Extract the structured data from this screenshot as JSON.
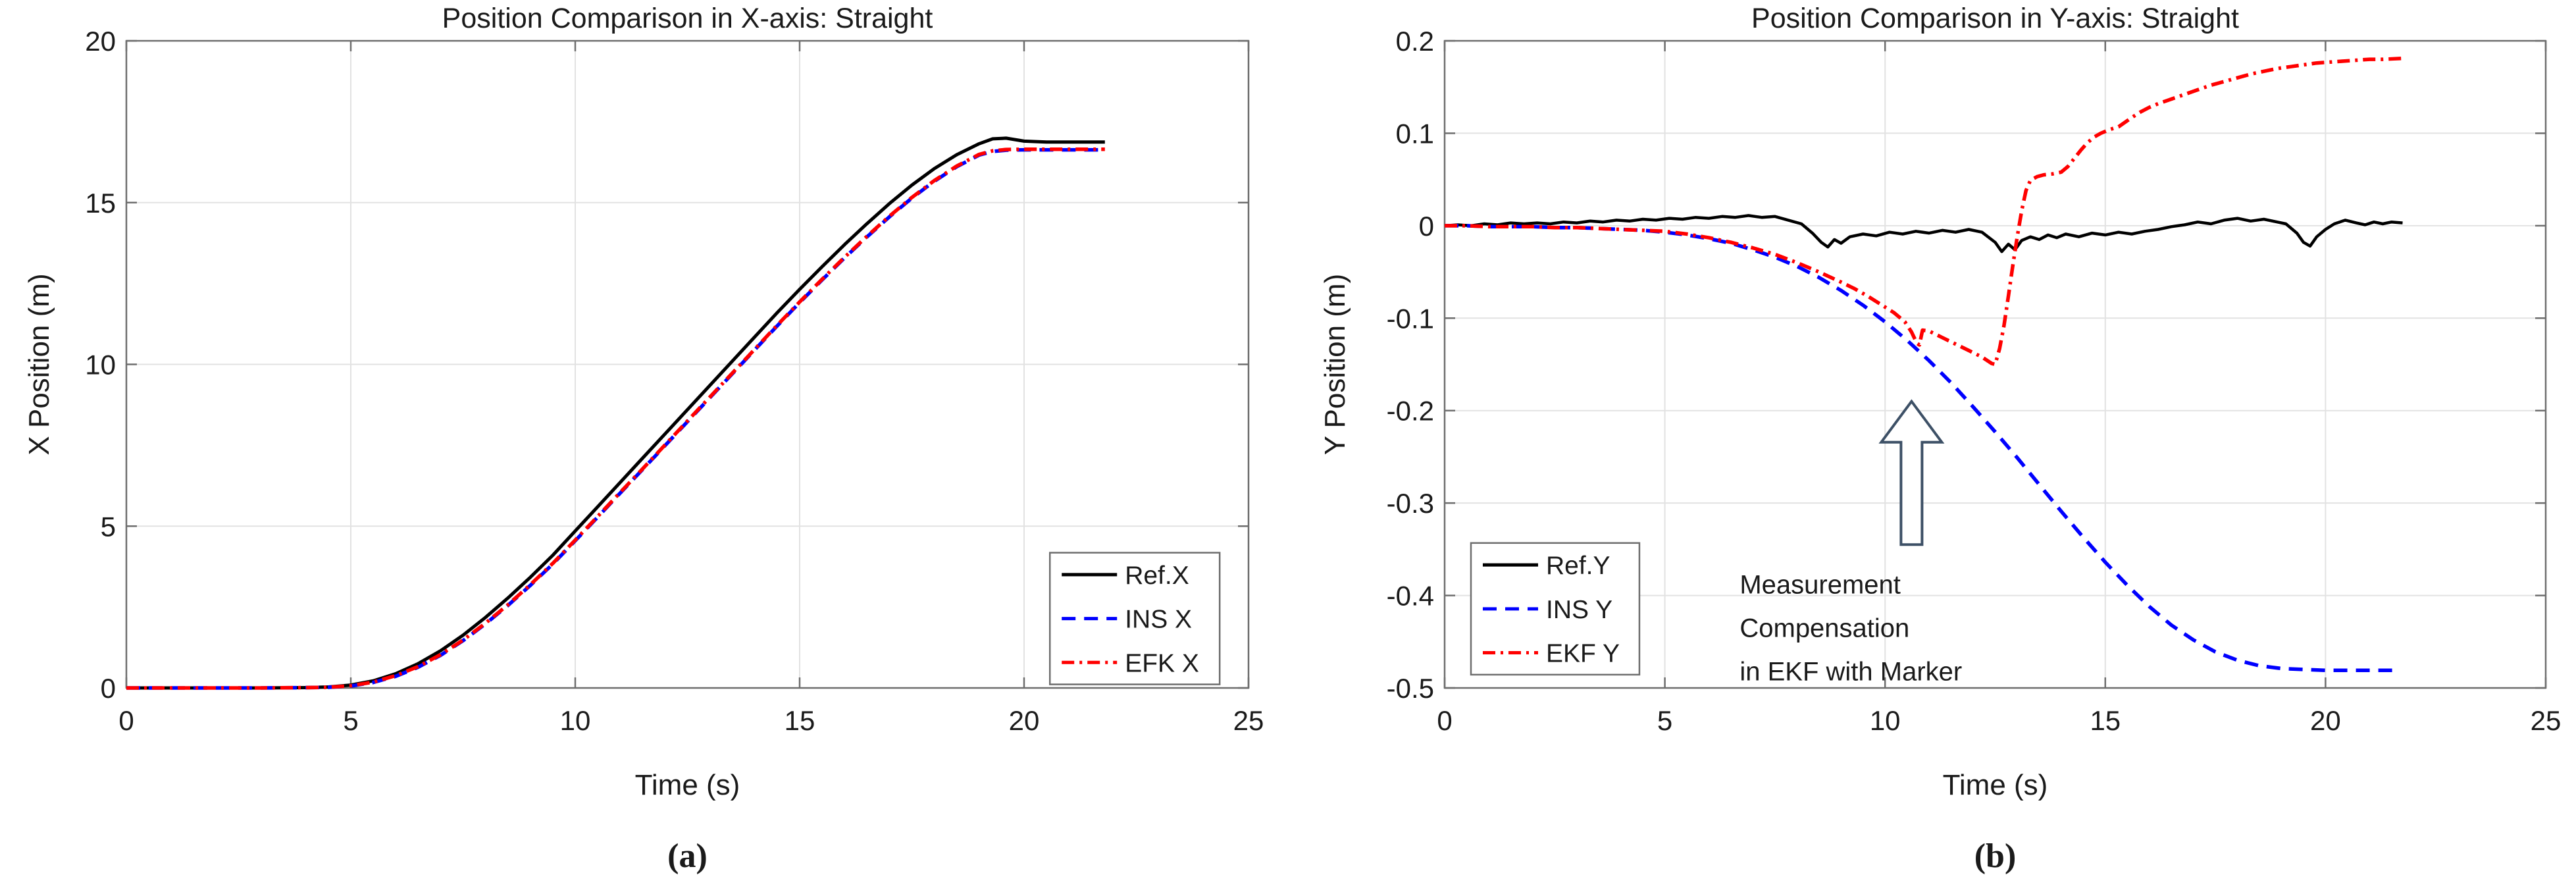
{
  "figure": {
    "background": "#ffffff",
    "description": "Two line charts comparing reference, INS and EKF position estimates for a straight trajectory"
  },
  "colors": {
    "ref": "#000000",
    "ins": "#0000ff",
    "ekf": "#ff0000",
    "grid": "#e2e2e2",
    "axis": "#6e6e6e",
    "text": "#1a1a1a",
    "arrow_outline": "#3d5066"
  },
  "chart_data": [
    {
      "type": "line",
      "title": "Position Comparison in X-axis: Straight",
      "xlabel": "Time (s)",
      "ylabel": "X Position (m)",
      "sublabel": "(a)",
      "xlim": [
        0,
        25
      ],
      "ylim": [
        0,
        20
      ],
      "xticks": [
        0,
        5,
        10,
        15,
        20,
        25
      ],
      "yticks": [
        0,
        5,
        10,
        15,
        20
      ],
      "xtick_labels": [
        "0",
        "5",
        "10",
        "15",
        "20",
        "25"
      ],
      "ytick_labels": [
        "0",
        "5",
        "10",
        "15",
        "20"
      ],
      "grid": true,
      "legend": {
        "pos": [
          0.823,
          0.791,
          0.1513,
          0.2035
        ],
        "entries": [
          {
            "label": "Ref.X",
            "color": "#000000",
            "dash": ""
          },
          {
            "label": "INS X",
            "color": "#0000ff",
            "dash": "21 13"
          },
          {
            "label": "EFK X",
            "color": "#ff0000",
            "dash": "19 8 4 8"
          }
        ]
      },
      "series": [
        {
          "name": "Ref.X",
          "color": "#000000",
          "dash": "",
          "width": 5,
          "x": [
            0,
            1,
            2,
            3,
            4,
            4.5,
            5,
            5.5,
            6,
            6.5,
            7,
            7.5,
            8,
            8.5,
            9,
            9.5,
            10,
            10.5,
            11,
            11.5,
            12,
            12.5,
            13,
            13.5,
            14,
            14.5,
            15,
            15.5,
            16,
            16.5,
            17,
            17.5,
            18,
            18.5,
            19,
            19.3,
            19.6,
            20,
            20.5,
            21,
            21.8
          ],
          "y": [
            0,
            0,
            0,
            0,
            0.01,
            0.03,
            0.09,
            0.22,
            0.44,
            0.75,
            1.15,
            1.63,
            2.18,
            2.78,
            3.42,
            4.1,
            4.85,
            5.6,
            6.35,
            7.1,
            7.85,
            8.6,
            9.35,
            10.1,
            10.85,
            11.6,
            12.32,
            13.02,
            13.7,
            14.35,
            14.97,
            15.54,
            16.05,
            16.48,
            16.82,
            16.97,
            16.99,
            16.9,
            16.87,
            16.87,
            16.87
          ]
        },
        {
          "name": "INS X",
          "color": "#0000ff",
          "dash": "21 13",
          "width": 5.5,
          "x": [
            0,
            1,
            2,
            3,
            4,
            4.5,
            5,
            5.5,
            6,
            6.5,
            7,
            7.5,
            8,
            8.5,
            9,
            9.5,
            10,
            10.5,
            11,
            11.5,
            12,
            12.5,
            13,
            13.5,
            14,
            14.5,
            15,
            15.5,
            16,
            16.5,
            17,
            17.5,
            18,
            18.5,
            19,
            19.3,
            19.6,
            20,
            20.5,
            21,
            21.8
          ],
          "y": [
            0,
            0,
            0,
            0,
            0.01,
            0.02,
            0.06,
            0.17,
            0.36,
            0.64,
            1.01,
            1.46,
            1.98,
            2.55,
            3.17,
            3.83,
            4.55,
            5.28,
            6.02,
            6.75,
            7.49,
            8.23,
            8.97,
            9.71,
            10.45,
            11.19,
            11.91,
            12.61,
            13.29,
            13.94,
            14.56,
            15.14,
            15.66,
            16.11,
            16.47,
            16.58,
            16.62,
            16.63,
            16.63,
            16.63,
            16.63
          ]
        },
        {
          "name": "EFK X",
          "color": "#ff0000",
          "dash": "19 8 4 8",
          "width": 5.5,
          "x": [
            0,
            1,
            2,
            3,
            4,
            4.5,
            5,
            5.5,
            6,
            6.5,
            7,
            7.5,
            8,
            8.5,
            9,
            9.5,
            10,
            10.5,
            11,
            11.5,
            12,
            12.5,
            13,
            13.5,
            14,
            14.5,
            15,
            15.5,
            16,
            16.5,
            17,
            17.5,
            18,
            18.5,
            19,
            19.3,
            19.6,
            20,
            20.5,
            21,
            21.8
          ],
          "y": [
            0,
            0,
            0,
            0,
            0.01,
            0.02,
            0.07,
            0.18,
            0.38,
            0.66,
            1.03,
            1.48,
            2.0,
            2.57,
            3.19,
            3.85,
            4.57,
            5.3,
            6.04,
            6.77,
            7.51,
            8.25,
            8.99,
            9.73,
            10.47,
            11.21,
            11.93,
            12.63,
            13.31,
            13.96,
            14.58,
            15.16,
            15.68,
            16.13,
            16.49,
            16.6,
            16.64,
            16.65,
            16.65,
            16.65,
            16.65
          ]
        }
      ]
    },
    {
      "type": "line",
      "title": "Position Comparison in Y-axis: Straight",
      "xlabel": "Time (s)",
      "ylabel": "Y Position (m)",
      "sublabel": "(b)",
      "xlim": [
        0,
        25
      ],
      "ylim": [
        -0.5,
        0.2
      ],
      "xticks": [
        0,
        5,
        10,
        15,
        20,
        25
      ],
      "yticks": [
        0.2,
        0.1,
        0,
        -0.1,
        -0.2,
        -0.3,
        -0.4,
        -0.5
      ],
      "xtick_labels": [
        "0",
        "5",
        "10",
        "15",
        "20",
        "25"
      ],
      "ytick_labels": [
        "0.2",
        "0.1",
        "0",
        "-0.1",
        "-0.2",
        "-0.3",
        "-0.4",
        "-0.5"
      ],
      "grid": true,
      "legend": {
        "pos": [
          0.0239,
          0.776,
          0.153,
          0.2035
        ],
        "entries": [
          {
            "label": "Ref.Y",
            "color": "#000000",
            "dash": ""
          },
          {
            "label": "INS Y",
            "color": "#0000ff",
            "dash": "21 13"
          },
          {
            "label": "EKF Y",
            "color": "#ff0000",
            "dash": "19 8 4 8"
          }
        ]
      },
      "annotation": {
        "lines": [
          "Measurement",
          "Compensation",
          "in EKF with Marker"
        ],
        "text_x": 6.7,
        "text_y": -0.368,
        "arrow": {
          "x": 10.6,
          "y_tip": -0.19,
          "y_base": -0.345
        }
      },
      "series": [
        {
          "name": "Ref.Y",
          "color": "#000000",
          "dash": "",
          "width": 4.5,
          "x": [
            0,
            0.3,
            0.6,
            0.9,
            1.2,
            1.5,
            1.8,
            2.1,
            2.4,
            2.7,
            3,
            3.3,
            3.6,
            3.9,
            4.2,
            4.5,
            4.8,
            5.1,
            5.4,
            5.7,
            6,
            6.3,
            6.6,
            6.9,
            7.2,
            7.5,
            7.8,
            8.1,
            8.35,
            8.55,
            8.7,
            8.85,
            9,
            9.2,
            9.5,
            9.8,
            10.1,
            10.4,
            10.7,
            11,
            11.3,
            11.6,
            11.9,
            12.2,
            12.5,
            12.65,
            12.8,
            12.95,
            13.1,
            13.3,
            13.5,
            13.7,
            13.9,
            14.1,
            14.4,
            14.7,
            15,
            15.3,
            15.6,
            15.9,
            16.2,
            16.5,
            16.8,
            17.1,
            17.4,
            17.7,
            18,
            18.3,
            18.6,
            18.9,
            19.1,
            19.35,
            19.5,
            19.65,
            19.8,
            20,
            20.2,
            20.45,
            20.7,
            20.9,
            21.1,
            21.3,
            21.5,
            21.75
          ],
          "y": [
            0,
            0.001,
            0,
            0.002,
            0.001,
            0.003,
            0.002,
            0.003,
            0.002,
            0.004,
            0.003,
            0.005,
            0.004,
            0.006,
            0.005,
            0.007,
            0.006,
            0.008,
            0.007,
            0.009,
            0.008,
            0.01,
            0.009,
            0.011,
            0.009,
            0.01,
            0.006,
            0.002,
            -0.008,
            -0.018,
            -0.023,
            -0.015,
            -0.019,
            -0.012,
            -0.009,
            -0.011,
            -0.007,
            -0.009,
            -0.006,
            -0.008,
            -0.005,
            -0.007,
            -0.004,
            -0.007,
            -0.018,
            -0.028,
            -0.02,
            -0.026,
            -0.016,
            -0.012,
            -0.015,
            -0.01,
            -0.013,
            -0.009,
            -0.012,
            -0.008,
            -0.01,
            -0.007,
            -0.009,
            -0.006,
            -0.004,
            -0.001,
            0.001,
            0.004,
            0.002,
            0.006,
            0.008,
            0.005,
            0.007,
            0.004,
            0.002,
            -0.008,
            -0.018,
            -0.022,
            -0.012,
            -0.004,
            0.002,
            0.006,
            0.003,
            0.001,
            0.004,
            0.002,
            0.004,
            0.003
          ]
        },
        {
          "name": "INS Y",
          "color": "#0000ff",
          "dash": "21 13",
          "width": 5.5,
          "x": [
            0,
            0.5,
            1,
            1.5,
            2,
            2.5,
            3,
            3.5,
            4,
            4.5,
            5,
            5.5,
            6,
            6.5,
            7,
            7.5,
            8,
            8.5,
            9,
            9.5,
            10,
            10.5,
            11,
            11.5,
            12,
            12.5,
            13,
            13.5,
            14,
            14.5,
            15,
            15.5,
            16,
            16.5,
            17,
            17.5,
            18,
            18.5,
            19,
            19.5,
            20,
            20.5,
            21,
            21.7
          ],
          "y": [
            0,
            0,
            -0.001,
            -0.001,
            -0.001,
            -0.002,
            -0.002,
            -0.003,
            -0.004,
            -0.005,
            -0.007,
            -0.01,
            -0.014,
            -0.019,
            -0.026,
            -0.034,
            -0.044,
            -0.056,
            -0.07,
            -0.086,
            -0.104,
            -0.124,
            -0.146,
            -0.17,
            -0.196,
            -0.223,
            -0.251,
            -0.28,
            -0.309,
            -0.337,
            -0.364,
            -0.389,
            -0.412,
            -0.432,
            -0.448,
            -0.461,
            -0.47,
            -0.476,
            -0.479,
            -0.48,
            -0.481,
            -0.481,
            -0.481,
            -0.481
          ]
        },
        {
          "name": "EKF Y",
          "color": "#ff0000",
          "dash": "19 8 4 8",
          "width": 5.5,
          "x": [
            0,
            0.5,
            1,
            1.5,
            2,
            2.5,
            3,
            3.5,
            4,
            4.5,
            5,
            5.5,
            6,
            6.5,
            7,
            7.5,
            8,
            8.5,
            9,
            9.3,
            9.6,
            9.9,
            10.2,
            10.45,
            10.6,
            10.72,
            10.78,
            10.85,
            11.0,
            11.3,
            11.6,
            11.9,
            12.2,
            12.42,
            12.5,
            12.6,
            12.7,
            12.8,
            12.9,
            13.0,
            13.1,
            13.2,
            13.3,
            13.45,
            13.6,
            13.8,
            14.0,
            14.15,
            14.3,
            14.45,
            14.6,
            14.75,
            14.9,
            15.1,
            15.3,
            15.45,
            15.6,
            15.8,
            16.0,
            16.2,
            16.5,
            16.8,
            17.1,
            17.4,
            17.7,
            18.0,
            18.3,
            18.6,
            18.9,
            19.2,
            19.5,
            19.8,
            20.1,
            20.4,
            20.7,
            21.0,
            21.3,
            21.75
          ],
          "y": [
            0,
            0,
            -0.001,
            -0.001,
            -0.001,
            -0.002,
            -0.002,
            -0.003,
            -0.004,
            -0.005,
            -0.006,
            -0.009,
            -0.013,
            -0.018,
            -0.024,
            -0.031,
            -0.04,
            -0.05,
            -0.061,
            -0.068,
            -0.076,
            -0.085,
            -0.094,
            -0.104,
            -0.115,
            -0.127,
            -0.129,
            -0.113,
            -0.114,
            -0.121,
            -0.128,
            -0.135,
            -0.142,
            -0.149,
            -0.15,
            -0.133,
            -0.108,
            -0.076,
            -0.043,
            -0.012,
            0.016,
            0.038,
            0.049,
            0.053,
            0.055,
            0.056,
            0.058,
            0.064,
            0.073,
            0.082,
            0.09,
            0.096,
            0.1,
            0.104,
            0.107,
            0.112,
            0.117,
            0.123,
            0.128,
            0.132,
            0.137,
            0.142,
            0.147,
            0.152,
            0.156,
            0.16,
            0.164,
            0.167,
            0.17,
            0.172,
            0.174,
            0.176,
            0.177,
            0.178,
            0.179,
            0.18,
            0.18,
            0.181
          ]
        }
      ]
    }
  ]
}
